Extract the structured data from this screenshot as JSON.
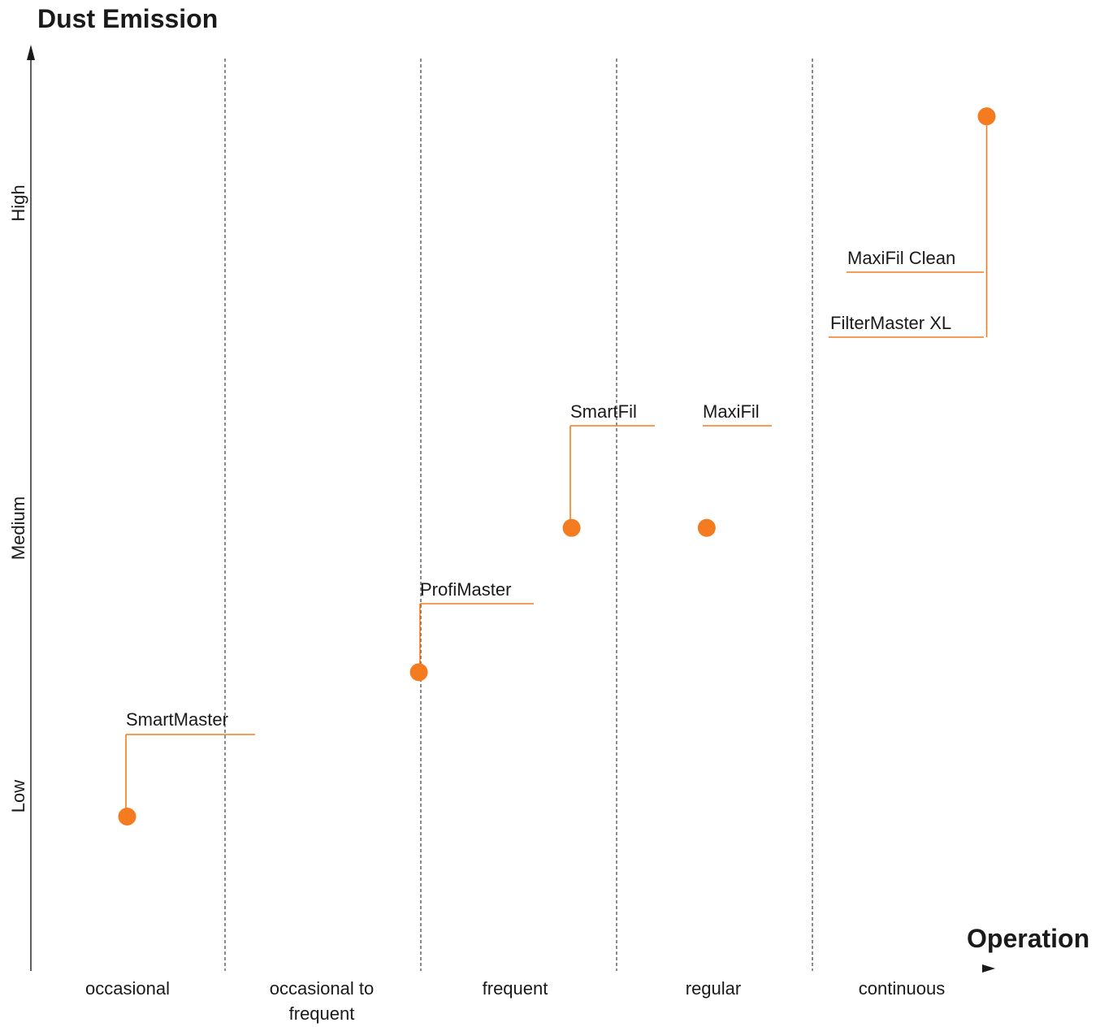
{
  "chart_data": {
    "type": "scatter",
    "title": "Dust Emission",
    "xlabel": "Operation",
    "ylabel": "",
    "x_categories": [
      "occasional",
      "occasional to frequent",
      "frequent",
      "regular",
      "continuous"
    ],
    "x_category_lines": [
      [
        "occasional"
      ],
      [
        "occasional to",
        "frequent"
      ],
      [
        "frequent"
      ],
      [
        "regular"
      ],
      [
        "continuous"
      ]
    ],
    "y_ticks": [
      "Low",
      "Medium",
      "High"
    ],
    "y_scale": "qualitative",
    "ylim": [
      0,
      3
    ],
    "grid": "vertical dashed category separators",
    "accent_color": "#f47b20",
    "points": [
      {
        "name": "SmartMaster",
        "x": 0.5,
        "y": 0.5
      },
      {
        "name": "ProfiMaster",
        "x": 1.99,
        "y": 0.97
      },
      {
        "name": "SmartFil",
        "x": 2.77,
        "y": 1.44
      },
      {
        "name": "MaxiFil",
        "x": 3.46,
        "y": 1.44
      },
      {
        "name": "MaxiFil Clean",
        "x": 4.89,
        "y": 2.78
      },
      {
        "name": "FilterMaster XL",
        "x": 4.89,
        "y": 2.78
      }
    ]
  }
}
